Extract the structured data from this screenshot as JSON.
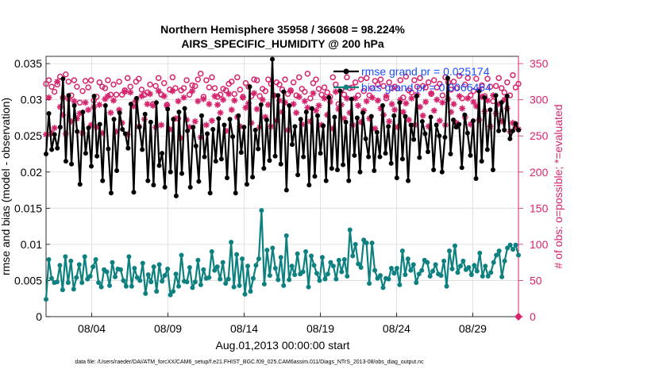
{
  "chart_data": {
    "type": "line",
    "title": "Northern Hemisphere 35958 / 36608 = 98.224%",
    "subtitle": "AIRS_SPECIFIC_HUMIDITY @ 200 hPa",
    "xlabel": "Aug.01,2013 00:00:00 start",
    "ylabel": "rmse and bias (model - observation)",
    "ylabel_right": "# of obs: o=possible; *=evaluated",
    "xlim": [
      1,
      32
    ],
    "ylim": [
      0,
      0.036
    ],
    "ylim_right": [
      0,
      360
    ],
    "x_ticks": [
      {
        "x": 4,
        "label": "08/04"
      },
      {
        "x": 9,
        "label": "08/09"
      },
      {
        "x": 14,
        "label": "08/14"
      },
      {
        "x": 19,
        "label": "08/19"
      },
      {
        "x": 24,
        "label": "08/24"
      },
      {
        "x": 29,
        "label": "08/29"
      }
    ],
    "y_ticks": [
      "0",
      "0.005",
      "0.01",
      "0.015",
      "0.02",
      "0.025",
      "0.03",
      "0.035"
    ],
    "y_ticks_right": [
      "0",
      "50",
      "100",
      "150",
      "200",
      "250",
      "300",
      "350"
    ],
    "footnote": "data file: /Users/raeder/DAI/ATM_forcXX/CAM6_setup/f.e21.FHIST_BGC.f09_025.CAM6assim.011/Diags_NTrS_2013-08/obs_diag_output.nc",
    "colors": {
      "rmse": "#000000",
      "bias": "#0d8080",
      "obs": "#d6246e",
      "legend_text": "#1a4cff"
    },
    "series": [
      {
        "name": "rmse",
        "legend": "rmse grand pr = 0.025174",
        "axis": "left",
        "values": [
          0.0225,
          0.0281,
          0.0231,
          0.0252,
          0.0233,
          0.0262,
          0.0329,
          0.0215,
          0.0306,
          0.0211,
          0.0292,
          0.0256,
          0.0183,
          0.0283,
          0.0226,
          0.0261,
          0.0208,
          0.0305,
          0.0222,
          0.0266,
          0.0188,
          0.0292,
          0.0232,
          0.0171,
          0.0273,
          0.0202,
          0.0282,
          0.0259,
          0.0253,
          0.0233,
          0.0294,
          0.0172,
          0.0302,
          0.0262,
          0.0231,
          0.028,
          0.0188,
          0.0269,
          0.0182,
          0.0296,
          0.0209,
          0.0226,
          0.0179,
          0.0287,
          0.02,
          0.0273,
          0.0167,
          0.0283,
          0.0198,
          0.0288,
          0.0257,
          0.0179,
          0.0262,
          0.0236,
          0.0187,
          0.0278,
          0.0221,
          0.0253,
          0.0171,
          0.0259,
          0.0215,
          0.0274,
          0.0218,
          0.0265,
          0.0192,
          0.0273,
          0.0249,
          0.0171,
          0.0278,
          0.0227,
          0.0262,
          0.0183,
          0.0318,
          0.0193,
          0.0258,
          0.0232,
          0.0293,
          0.0205,
          0.0272,
          0.0216,
          0.0356,
          0.0222,
          0.0306,
          0.0211,
          0.0311,
          0.0175,
          0.0292,
          0.0238,
          0.0263,
          0.0196,
          0.0273,
          0.0221,
          0.0283,
          0.0182,
          0.0288,
          0.0194,
          0.0278,
          0.0226,
          0.0264,
          0.0188,
          0.0303,
          0.0205,
          0.0276,
          0.0203,
          0.0312,
          0.021,
          0.0269,
          0.0188,
          0.0301,
          0.0223,
          0.0275,
          0.02,
          0.0282,
          0.0246,
          0.0221,
          0.0277,
          0.0202,
          0.0255,
          0.0221,
          0.0292,
          0.0226,
          0.0263,
          0.0212,
          0.0278,
          0.0192,
          0.0296,
          0.0218,
          0.0277,
          0.0188,
          0.0265,
          0.0245,
          0.0305,
          0.022,
          0.027,
          0.0253,
          0.0228,
          0.0276,
          0.0203,
          0.0265,
          0.025,
          0.02,
          0.0248,
          0.033,
          0.0225,
          0.0272,
          0.0262,
          0.0266,
          0.0206,
          0.0279,
          0.0254,
          0.0223,
          0.0271,
          0.0191,
          0.0312,
          0.0215,
          0.0303,
          0.0231,
          0.0286,
          0.0203,
          0.0306,
          0.0257,
          0.0296,
          0.0258,
          0.0305,
          0.0246,
          0.0257,
          0.0267,
          0.0258
        ]
      },
      {
        "name": "bias",
        "legend": "bias grand pr = 0.0066464",
        "axis": "left",
        "values": [
          0.0024,
          0.0079,
          0.0053,
          0.0047,
          0.0048,
          0.0071,
          0.0037,
          0.0083,
          0.0047,
          0.0077,
          0.0038,
          0.0054,
          0.0072,
          0.0047,
          0.0083,
          0.0052,
          0.0056,
          0.0069,
          0.0079,
          0.0047,
          0.0041,
          0.0065,
          0.0062,
          0.0043,
          0.0075,
          0.0055,
          0.0066,
          0.0065,
          0.005,
          0.0042,
          0.0083,
          0.0042,
          0.0067,
          0.0054,
          0.005,
          0.0074,
          0.0032,
          0.0058,
          0.0048,
          0.0069,
          0.0035,
          0.0072,
          0.0049,
          0.0057,
          0.0066,
          0.003,
          0.0035,
          0.0059,
          0.0042,
          0.0085,
          0.0049,
          0.0048,
          0.0068,
          0.004,
          0.0048,
          0.0078,
          0.0044,
          0.0065,
          0.0053,
          0.0054,
          0.009,
          0.0064,
          0.0069,
          0.0052,
          0.0075,
          0.0046,
          0.0052,
          0.0103,
          0.0041,
          0.0086,
          0.0043,
          0.008,
          0.0031,
          0.007,
          0.0035,
          0.0053,
          0.0071,
          0.008,
          0.0147,
          0.0045,
          0.0092,
          0.0057,
          0.0095,
          0.0067,
          0.0051,
          0.0082,
          0.0043,
          0.0112,
          0.0051,
          0.007,
          0.0058,
          0.0087,
          0.0059,
          0.0062,
          0.009,
          0.0041,
          0.0084,
          0.0071,
          0.006,
          0.005,
          0.0082,
          0.0052,
          0.0059,
          0.0075,
          0.007,
          0.0052,
          0.0078,
          0.0062,
          0.0079,
          0.0056,
          0.012,
          0.0084,
          0.01,
          0.0073,
          0.0068,
          0.0106,
          0.0102,
          0.0046,
          0.0102,
          0.0064,
          0.0053,
          0.0057,
          0.004,
          0.0053,
          0.0052,
          0.0067,
          0.006,
          0.0067,
          0.0044,
          0.0091,
          0.0058,
          0.008,
          0.0064,
          0.0072,
          0.0047,
          0.0059,
          0.0064,
          0.0078,
          0.0075,
          0.0056,
          0.0063,
          0.0072,
          0.0059,
          0.0057,
          0.0077,
          0.0042,
          0.0091,
          0.0066,
          0.0098,
          0.0061,
          0.007,
          0.0077,
          0.0065,
          0.0068,
          0.0058,
          0.0071,
          0.0063,
          0.0088,
          0.0056,
          0.007,
          0.0056,
          0.0061,
          0.0075,
          0.0085,
          0.0091,
          0.0055,
          0.0077,
          0.0095,
          0.0099,
          0.0093,
          0.0099,
          0.0085
        ]
      },
      {
        "name": "obs_possible",
        "marker": "o",
        "axis": "right",
        "values": [
          322,
          327,
          318,
          311,
          321,
          332,
          303,
          335,
          325,
          306,
          327,
          318,
          296,
          312,
          326,
          317,
          327,
          299,
          304,
          324,
          318,
          316,
          327,
          307,
          321,
          307,
          325,
          307,
          313,
          330,
          318,
          294,
          325,
          329,
          314,
          307,
          310,
          321,
          294,
          319,
          330,
          307,
          323,
          293,
          314,
          331,
          316,
          274,
          313,
          316,
          327,
          307,
          320,
          319,
          328,
          336,
          304,
          327,
          317,
          331,
          316,
          304,
          307,
          315,
          313,
          322,
          325,
          308,
          331,
          314,
          304,
          323,
          318,
          305,
          328,
          327,
          305,
          315,
          312,
          328,
          322,
          306,
          324,
          321,
          314,
          328,
          308,
          313,
          324,
          306,
          331,
          315,
          311,
          336,
          302,
          323,
          328,
          315,
          307,
          317,
          310,
          304,
          331,
          321,
          294,
          314,
          307,
          331,
          316,
          317,
          324,
          306,
          328,
          312,
          330,
          306,
          316,
          326,
          321,
          328,
          319,
          302,
          324,
          316,
          318,
          316,
          327,
          303,
          332,
          313,
          310,
          327,
          318,
          330,
          319,
          317,
          324,
          308,
          327,
          317,
          322,
          306,
          331,
          324,
          314,
          325,
          316,
          333,
          302,
          321,
          330,
          306,
          312,
          329,
          313,
          320,
          305,
          329,
          318,
          298,
          319,
          330,
          316,
          310,
          324,
          306,
          334,
          317,
          322
        ]
      },
      {
        "name": "obs_evaluated",
        "marker": "*",
        "axis": "right",
        "values": [
          252,
          303,
          254,
          261,
          325,
          290,
          279,
          253,
          301,
          270,
          298,
          274,
          281,
          254,
          296,
          286,
          265,
          290,
          262,
          293,
          254,
          301,
          305,
          282,
          299,
          256,
          286,
          268,
          311,
          252,
          310,
          291,
          299,
          263,
          305,
          273,
          294,
          308,
          292,
          262,
          312,
          265,
          305,
          292,
          259,
          312,
          274,
          298,
          247,
          303,
          272,
          262,
          312,
          270,
          298,
          248,
          301,
          265,
          294,
          271,
          305,
          293,
          282,
          300,
          257,
          308,
          286,
          299,
          276,
          263,
          303,
          289,
          295,
          268,
          309,
          287,
          262,
          300,
          276,
          293,
          263,
          306,
          271,
          299,
          283,
          296,
          258,
          312,
          294,
          282,
          304,
          266,
          298,
          289,
          270,
          309,
          285,
          292,
          265,
          302,
          279,
          297,
          260,
          311,
          287,
          293,
          274,
          302,
          282,
          265,
          302,
          292,
          269,
          285,
          298,
          274,
          303,
          260,
          299,
          288,
          279,
          305,
          270,
          294,
          286,
          262,
          300,
          283,
          295,
          272,
          302,
          265,
          307,
          290,
          278,
          297,
          263,
          309,
          285,
          300,
          271,
          296,
          265,
          301,
          283,
          294,
          268,
          305,
          288,
          276,
          302,
          266,
          297,
          291,
          272,
          304,
          284,
          299,
          263,
          306,
          281,
          294,
          270,
          300,
          288,
          256,
          268,
          262,
          259
        ]
      }
    ]
  }
}
